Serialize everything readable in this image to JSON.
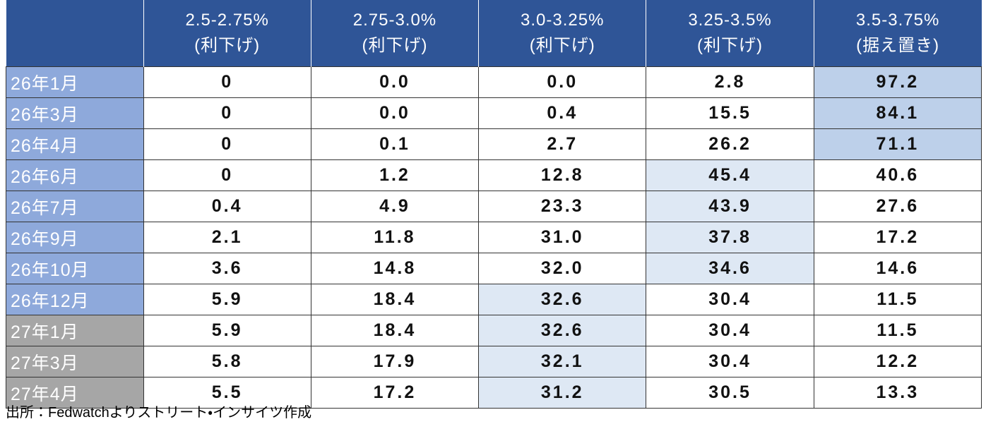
{
  "table": {
    "columns": [
      {
        "range": "2.5-2.75%",
        "label": "(利下げ)"
      },
      {
        "range": "2.75-3.0%",
        "label": "(利下げ)"
      },
      {
        "range": "3.0-3.25%",
        "label": "(利下げ)"
      },
      {
        "range": "3.25-3.5%",
        "label": "(利下げ)"
      },
      {
        "range": "3.5-3.75%",
        "label": "(据え置き)"
      }
    ],
    "rows": [
      {
        "label": "26年1月",
        "values": [
          "0",
          "0.0",
          "0.0",
          "2.8",
          "97.2"
        ]
      },
      {
        "label": "26年3月",
        "values": [
          "0",
          "0.0",
          "0.4",
          "15.5",
          "84.1"
        ]
      },
      {
        "label": "26年4月",
        "values": [
          "0",
          "0.1",
          "2.7",
          "26.2",
          "71.1"
        ]
      },
      {
        "label": "26年6月",
        "values": [
          "0",
          "1.2",
          "12.8",
          "45.4",
          "40.6"
        ]
      },
      {
        "label": "26年7月",
        "values": [
          "0.4",
          "4.9",
          "23.3",
          "43.9",
          "27.6"
        ]
      },
      {
        "label": "26年9月",
        "values": [
          "2.1",
          "11.8",
          "31.0",
          "37.8",
          "17.2"
        ]
      },
      {
        "label": "26年10月",
        "values": [
          "3.6",
          "14.8",
          "32.0",
          "34.6",
          "14.6"
        ]
      },
      {
        "label": "26年12月",
        "values": [
          "5.9",
          "18.4",
          "32.6",
          "30.4",
          "11.5"
        ]
      },
      {
        "label": "27年1月",
        "values": [
          "5.9",
          "18.4",
          "32.6",
          "30.4",
          "11.5"
        ]
      },
      {
        "label": "27年3月",
        "values": [
          "5.8",
          "17.9",
          "32.1",
          "30.4",
          "12.2"
        ]
      },
      {
        "label": "27年4月",
        "values": [
          "5.5",
          "17.2",
          "31.2",
          "30.5",
          "13.3"
        ]
      }
    ]
  },
  "source": "出所：Fedwatchよりストリート・インサイツ作成"
}
